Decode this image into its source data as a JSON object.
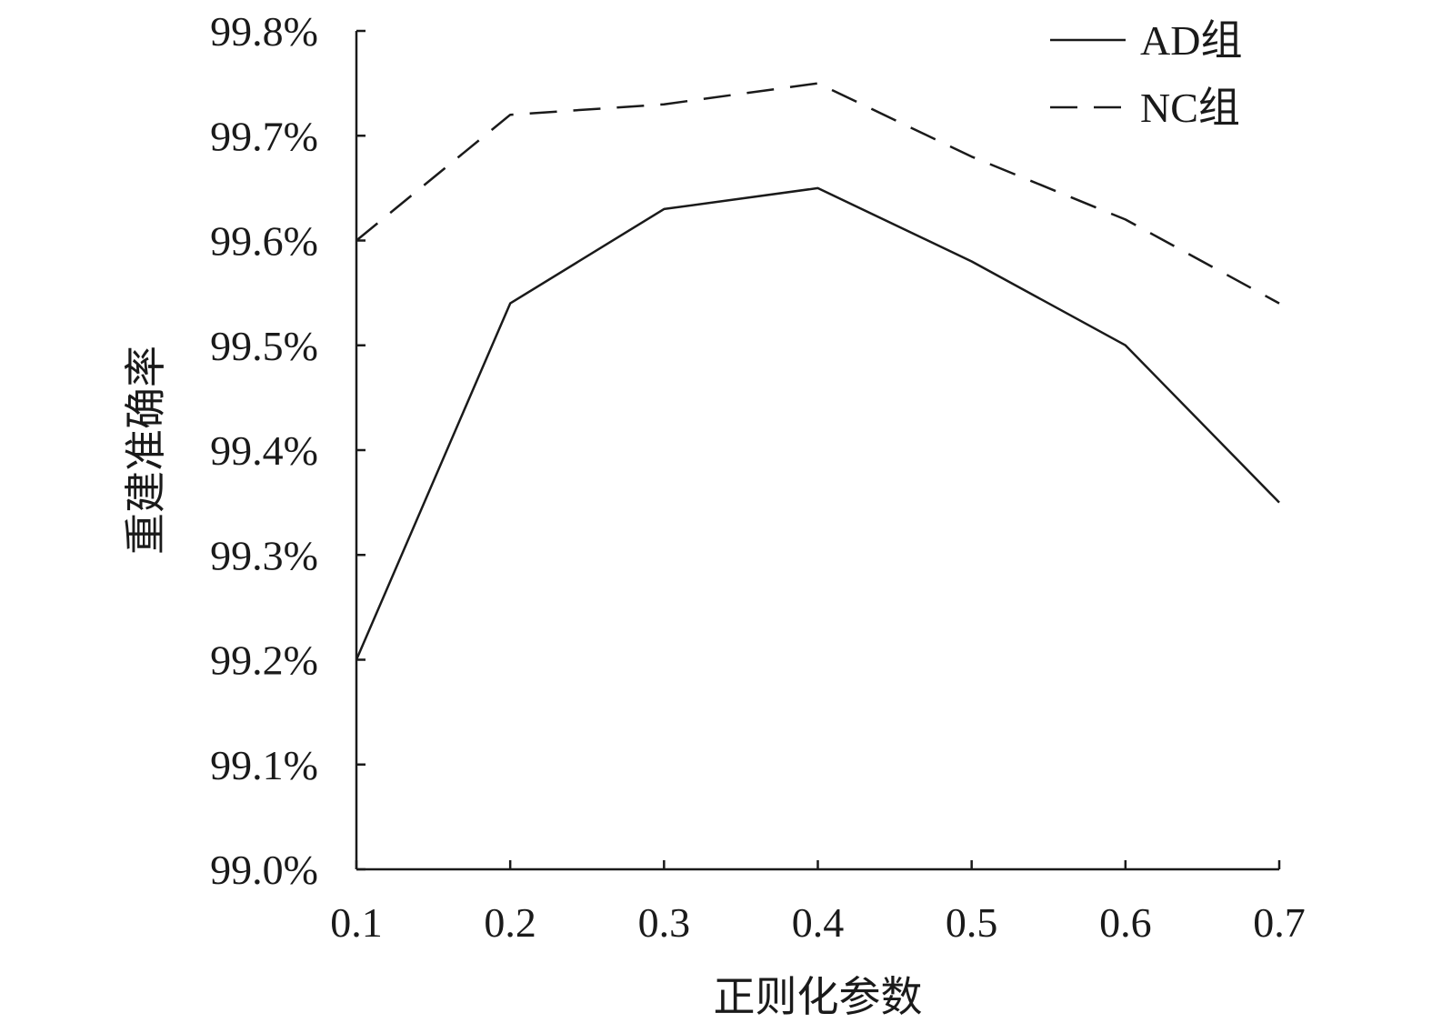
{
  "chart_data": {
    "type": "line",
    "x": [
      0.1,
      0.2,
      0.3,
      0.4,
      0.5,
      0.6,
      0.7
    ],
    "x_tick_labels": [
      "0.1",
      "0.2",
      "0.3",
      "0.4",
      "0.5",
      "0.6",
      "0.7"
    ],
    "series": [
      {
        "name": "AD组",
        "style": "solid",
        "values": [
          99.2,
          99.54,
          99.63,
          99.65,
          99.58,
          99.5,
          99.35
        ]
      },
      {
        "name": "NC组",
        "style": "dashed",
        "values": [
          99.6,
          99.72,
          99.73,
          99.75,
          99.68,
          99.62,
          99.54
        ]
      }
    ],
    "y_ticks": [
      99.0,
      99.1,
      99.2,
      99.3,
      99.4,
      99.5,
      99.6,
      99.7,
      99.8
    ],
    "y_tick_labels": [
      "99.0%",
      "99.1%",
      "99.2%",
      "99.3%",
      "99.4%",
      "99.5%",
      "99.6%",
      "99.7%",
      "99.8%"
    ],
    "xlabel": "正则化参数",
    "ylabel": "重建准确率",
    "xlim": [
      0.1,
      0.7
    ],
    "ylim": [
      99.0,
      99.8
    ],
    "grid": false,
    "legend_position": "top-right",
    "line_color": "#1a1a1a"
  }
}
